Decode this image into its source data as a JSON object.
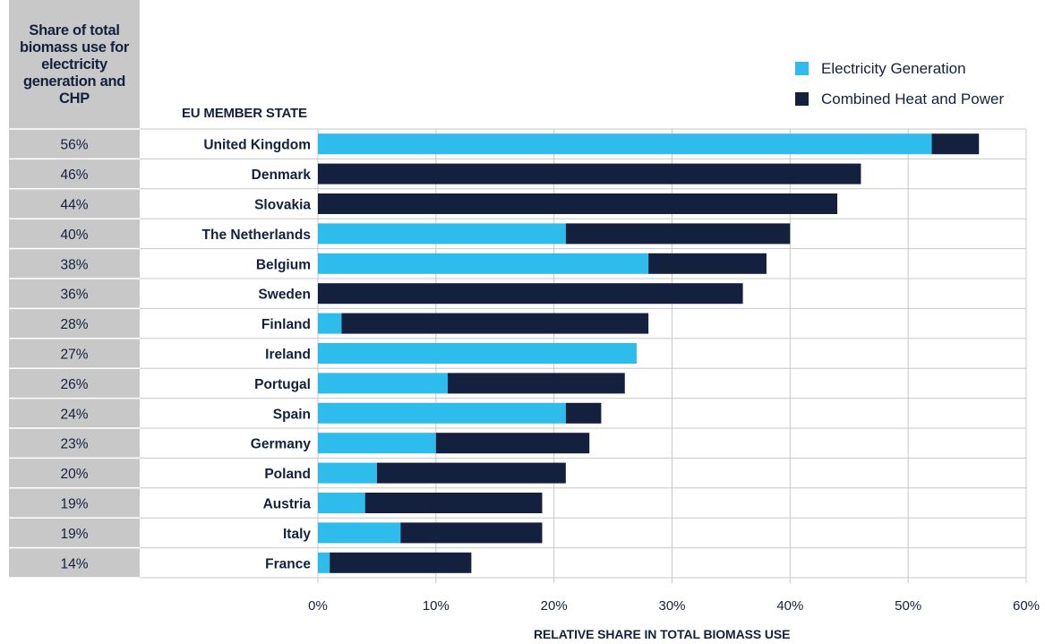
{
  "header": {
    "share_heading": "Share of total biomass use for electricity generation and CHP",
    "member_state_heading": "EU MEMBER STATE"
  },
  "legend": [
    {
      "name": "Electricity Generation",
      "color": "#2ebcec"
    },
    {
      "name": "Combined Heat and Power",
      "color": "#13213f"
    }
  ],
  "chart_data": {
    "type": "bar",
    "orientation": "horizontal",
    "stacked": true,
    "title": "",
    "xlabel": "RELATIVE SHARE IN TOTAL BIOMASS USE",
    "ylabel": "EU MEMBER STATE",
    "xlim": [
      0,
      60
    ],
    "x_ticks": [
      "0%",
      "10%",
      "20%",
      "30%",
      "40%",
      "50%",
      "60%"
    ],
    "x_tick_values": [
      0,
      10,
      20,
      30,
      40,
      50,
      60
    ],
    "grid": true,
    "legend_position": "top-right",
    "categories": [
      "United Kingdom",
      "Denmark",
      "Slovakia",
      "The Netherlands",
      "Belgium",
      "Sweden",
      "Finland",
      "Ireland",
      "Portugal",
      "Spain",
      "Germany",
      "Poland",
      "Austria",
      "Italy",
      "France"
    ],
    "share_labels": [
      "56%",
      "46%",
      "44%",
      "40%",
      "38%",
      "36%",
      "28%",
      "27%",
      "26%",
      "24%",
      "23%",
      "20%",
      "19%",
      "19%",
      "14%"
    ],
    "series": [
      {
        "name": "Electricity Generation",
        "color": "#2ebcec",
        "values": [
          52,
          0,
          0,
          21,
          28,
          0,
          2,
          27,
          11,
          21,
          10,
          5,
          4,
          7,
          1
        ]
      },
      {
        "name": "Combined Heat and Power",
        "color": "#13213f",
        "values": [
          4,
          46,
          44,
          19,
          10,
          36,
          26,
          0,
          15,
          3,
          13,
          16,
          15,
          12,
          12
        ]
      }
    ]
  }
}
